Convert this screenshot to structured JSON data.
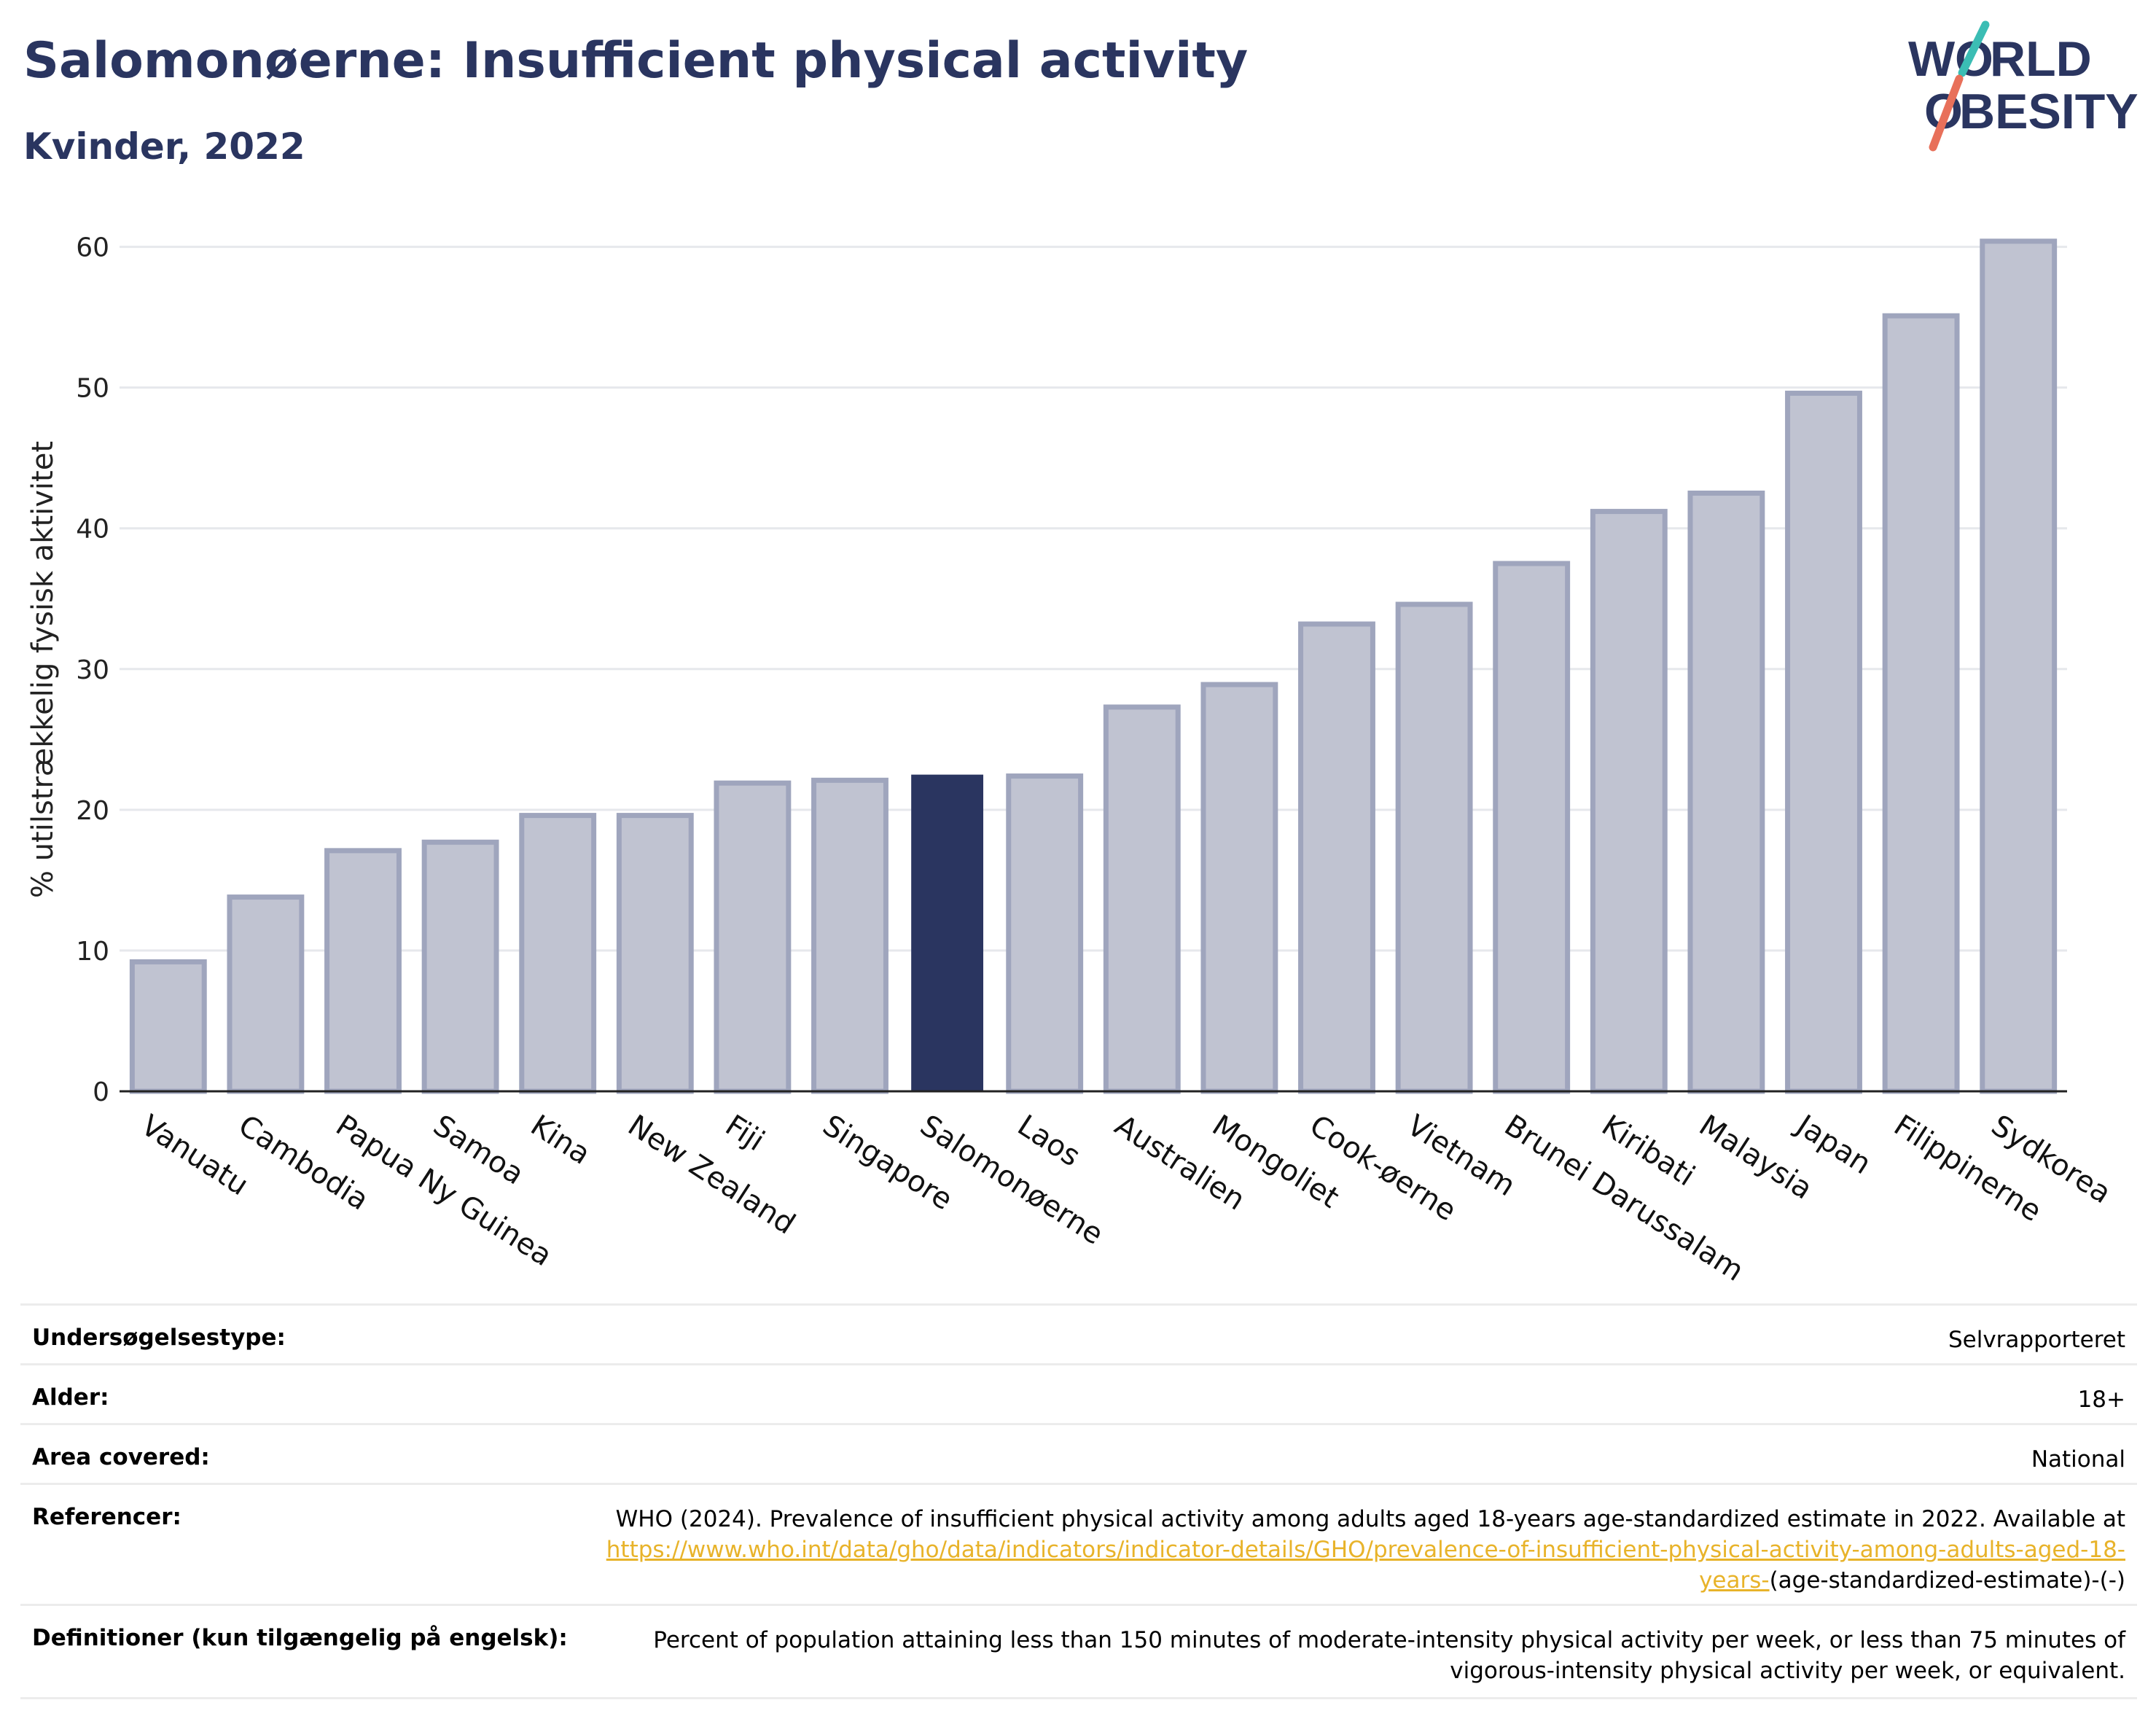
{
  "header": {
    "title": "Salomonøerne: Insufficient physical activity",
    "subtitle": "Kvinder, 2022"
  },
  "logo": {
    "line1": "W",
    "o": "O",
    "line1_rest": "RLD",
    "line2": "BESITY",
    "text": "WORLD OBESITY"
  },
  "colors": {
    "title": "#2a3560",
    "bar_default": "#c0c3d1",
    "bar_default_stroke": "#9fa5bd",
    "bar_highlight": "#2a3560",
    "grid": "#e6e8ec",
    "link": "#e8b32a",
    "logo_teal": "#3bbdb4",
    "logo_coral": "#e8705a"
  },
  "chart_data": {
    "type": "bar",
    "ylabel": "% utilstrækkelig fysisk aktivitet",
    "xlabel": "",
    "ylim": [
      0,
      62
    ],
    "yticks": [
      0,
      10,
      20,
      30,
      40,
      50,
      60
    ],
    "grid": true,
    "highlight": "Salomonøerne",
    "categories": [
      "Vanuatu",
      "Cambodia",
      "Papua Ny Guinea",
      "Samoa",
      "Kina",
      "New Zealand",
      "Fiji",
      "Singapore",
      "Salomonøerne",
      "Laos",
      "Australien",
      "Mongoliet",
      "Cook-øerne",
      "Vietnam",
      "Brunei Darussalam",
      "Kiribati",
      "Malaysia",
      "Japan",
      "Filippinerne",
      "Sydkorea"
    ],
    "values": [
      9.2,
      13.8,
      17.1,
      17.7,
      19.6,
      19.6,
      21.9,
      22.1,
      22.5,
      22.4,
      27.3,
      28.9,
      33.2,
      34.6,
      37.5,
      41.2,
      42.5,
      49.6,
      55.1,
      60.4
    ]
  },
  "info": {
    "rows": [
      {
        "key": "Undersøgelsestype:",
        "value": "Selvrapporteret"
      },
      {
        "key": "Alder:",
        "value": "18+"
      },
      {
        "key": "Area covered:",
        "value": "National"
      }
    ],
    "references": {
      "key": "Referencer:",
      "text": "WHO (2024). Prevalence of insufficient physical activity among adults aged 18-years age-standardized estimate in 2022. Available at",
      "link": "https://www.who.int/data/gho/data/indicators/indicator-details/GHO/prevalence-of-insufficient-physical-activity-among-adults-aged-18-years-",
      "suffix": "(age-standardized-estimate)-(-)"
    },
    "definition": {
      "key": "Definitioner (kun tilgængelig på engelsk):",
      "value": "Percent of population attaining less than 150 minutes of moderate-intensity physical activity per week, or less than 75 minutes of vigorous-intensity physical activity per week, or equivalent."
    }
  }
}
